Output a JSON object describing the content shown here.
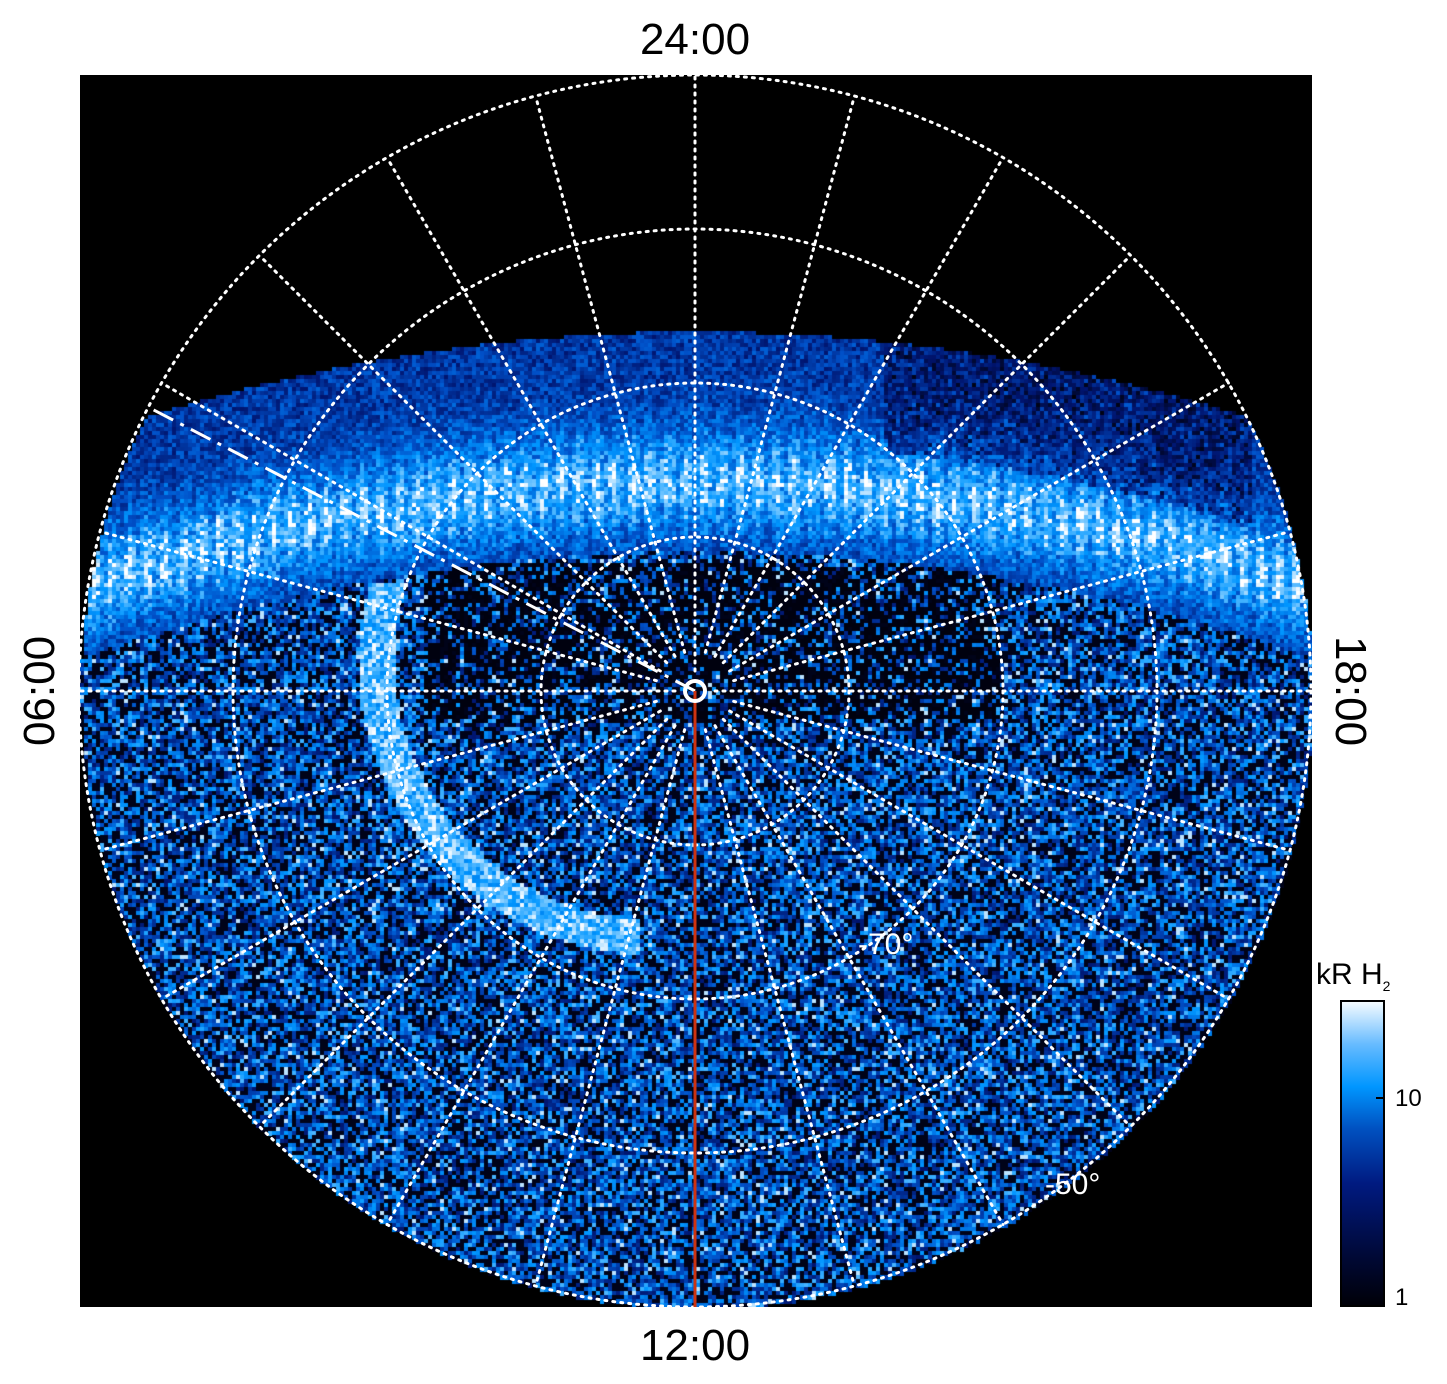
{
  "chart_data": {
    "type": "heatmap",
    "projection": "polar (south pole, local time vs latitude)",
    "local_time_labels": {
      "top": "24:00",
      "bottom": "12:00",
      "left": "06:00",
      "right": "18:00"
    },
    "latitude_labels": [
      "-70°",
      "-50°"
    ],
    "latitude_rings_deg": [
      -80,
      -70,
      -60,
      -50
    ],
    "meridian_spacing_hours": 1,
    "colorbar": {
      "label": "kR H",
      "label_subscript": "2",
      "scale": "log",
      "range": [
        1,
        30
      ],
      "ticks": [
        "10",
        "1"
      ],
      "colors": [
        "#000008",
        "#001a80",
        "#0096ff",
        "#ffffff"
      ]
    },
    "overlays": {
      "noon_line_color": "#cc3311",
      "dashed_line_color": "#ffffff"
    }
  }
}
